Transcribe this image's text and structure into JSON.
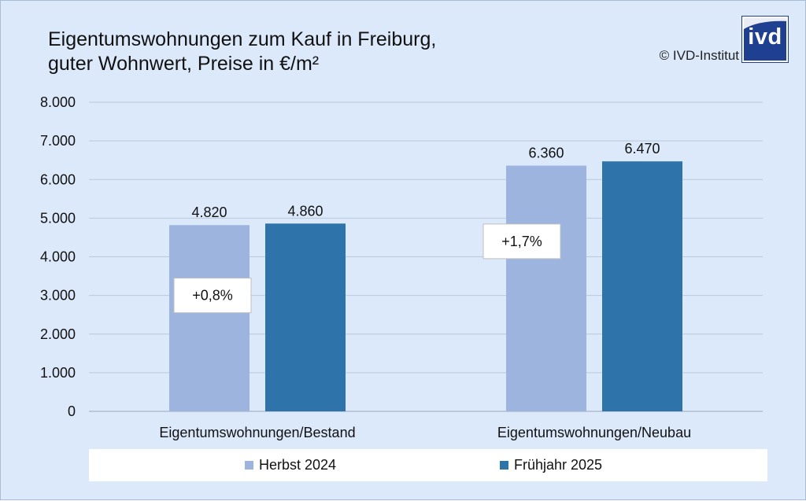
{
  "header": {
    "title_line1": "Eigentumswohnungen zum Kauf in Freiburg,",
    "title_line2": "guter Wohnwert, Preise in €/m²",
    "copyright": "© IVD-Institut",
    "logo_text": "ivd"
  },
  "colors": {
    "background": "#dce9fb",
    "herbst": "#9db5de",
    "fruehjahr": "#2e73aa",
    "logo": "#1f3f91"
  },
  "chart_data": {
    "type": "bar",
    "categories": [
      "Eigentumswohnungen/Bestand",
      "Eigentumswohnungen/Neubau"
    ],
    "series": [
      {
        "name": "Herbst 2024",
        "values": [
          4820,
          6360
        ],
        "labels": [
          "4.820",
          "6.360"
        ]
      },
      {
        "name": "Frühjahr 2025",
        "values": [
          4860,
          6470
        ],
        "labels": [
          "4.860",
          "6.470"
        ]
      }
    ],
    "ylim": [
      0,
      8000
    ],
    "yticks": [
      0,
      1000,
      2000,
      3000,
      4000,
      5000,
      6000,
      7000,
      8000
    ],
    "ytick_labels": [
      "0",
      "1.000",
      "2.000",
      "3.000",
      "4.000",
      "5.000",
      "6.000",
      "7.000",
      "8.000"
    ],
    "grid": true,
    "legend_position": "bottom",
    "annotations": [
      "+0,8%",
      "+1,7%"
    ]
  }
}
